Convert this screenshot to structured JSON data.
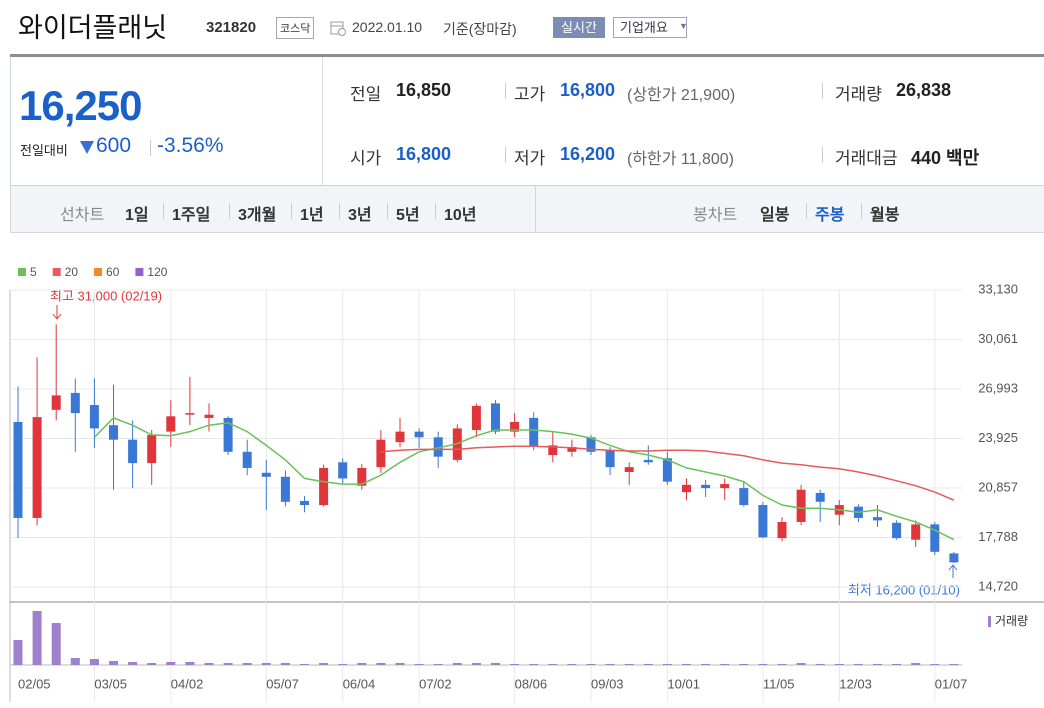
{
  "header": {
    "title": "와이더플래닛",
    "code": "321820",
    "market": "코스닥",
    "date": "2022.01.10",
    "basis": "기준(장마감)",
    "realtime": "실시간",
    "company": "기업개요"
  },
  "quote": {
    "price": "16,250",
    "change_label": "전일대비",
    "change": "600",
    "change_pct": "-3.56%",
    "items": [
      {
        "label": "전일",
        "value": "16,850"
      },
      {
        "label": "고가",
        "value": "16,800",
        "note": "(상한가 21,900)"
      },
      {
        "label": "거래량",
        "value": "26,838"
      },
      {
        "label": "시가",
        "value": "16,800"
      },
      {
        "label": "저가",
        "value": "16,200",
        "note": "(하한가 11,800)"
      },
      {
        "label": "거래대금",
        "value": "440 백만"
      }
    ]
  },
  "tabs": {
    "line_label": "선차트",
    "line_items": [
      "1일",
      "1주일",
      "3개월",
      "1년",
      "3년",
      "5년",
      "10년"
    ],
    "candle_label": "봉차트",
    "candle_items": [
      "일봉",
      "주봉",
      "월봉"
    ],
    "active": "주봉"
  },
  "chart_data": {
    "type": "candlestick",
    "categories": [
      "02/05",
      null,
      null,
      null,
      "03/05",
      null,
      null,
      null,
      "04/02",
      null,
      null,
      null,
      null,
      "05/07",
      null,
      null,
      null,
      "06/04",
      null,
      null,
      null,
      "07/02",
      null,
      null,
      null,
      null,
      "08/06",
      null,
      null,
      null,
      "09/03",
      null,
      null,
      null,
      "10/01",
      null,
      null,
      null,
      null,
      "11/05",
      null,
      null,
      null,
      "12/03",
      null,
      null,
      null,
      null,
      "01/07",
      null
    ],
    "open": [
      24950,
      19000,
      25700,
      26750,
      26000,
      24750,
      23850,
      22400,
      24350,
      25400,
      25200,
      25200,
      23100,
      21800,
      21550,
      20050,
      19800,
      22450,
      21000,
      22150,
      23700,
      24350,
      24000,
      22600,
      24450,
      26100,
      24350,
      25200,
      22900,
      23100,
      24000,
      23200,
      21850,
      22600,
      22700,
      20600,
      21050,
      20850,
      20850,
      19800,
      17750,
      18750,
      20550,
      19200,
      19700,
      19050,
      18700,
      17650,
      18600,
      16800
    ],
    "high": [
      27150,
      28950,
      31000,
      27650,
      27650,
      27250,
      25050,
      24450,
      26300,
      27750,
      26100,
      25300,
      23850,
      22600,
      21950,
      20350,
      22300,
      22700,
      22350,
      24450,
      25200,
      24550,
      24350,
      24800,
      26100,
      26300,
      25500,
      25550,
      24350,
      23850,
      24150,
      23400,
      22450,
      23500,
      23100,
      21450,
      21350,
      21450,
      21250,
      20000,
      19050,
      21050,
      20750,
      20100,
      19850,
      19800,
      18850,
      18850,
      18750,
      16900
    ],
    "low": [
      17750,
      18550,
      25050,
      23100,
      23350,
      20750,
      20850,
      21050,
      23400,
      24750,
      24350,
      22900,
      21650,
      19500,
      19700,
      19350,
      19700,
      21150,
      20750,
      21800,
      23400,
      23350,
      22100,
      22450,
      24000,
      24200,
      24000,
      23200,
      22450,
      22800,
      22900,
      21650,
      21050,
      22300,
      21050,
      20100,
      20300,
      20100,
      19700,
      17750,
      17550,
      18550,
      18750,
      18550,
      18750,
      18450,
      17650,
      17200,
      16700,
      16200
    ],
    "close": [
      19000,
      25250,
      26600,
      25500,
      24550,
      23850,
      22400,
      24150,
      25300,
      25500,
      25400,
      23100,
      22100,
      21550,
      20000,
      19800,
      22100,
      21450,
      22100,
      23850,
      24350,
      24000,
      22800,
      24550,
      25950,
      24350,
      24950,
      23450,
      23500,
      23400,
      23100,
      22150,
      22150,
      22450,
      21250,
      21050,
      20850,
      21100,
      19800,
      17800,
      18750,
      20750,
      20000,
      19800,
      19000,
      18850,
      17750,
      18600,
      16900,
      16250
    ],
    "up_color": "#e0363b",
    "down_color": "#3a78d6",
    "series": [
      {
        "name": "5",
        "color": "#6cc05c",
        "values": [
          null,
          null,
          null,
          null,
          24000,
          25200,
          24750,
          24150,
          24100,
          24350,
          24750,
          24900,
          24350,
          23500,
          22600,
          21450,
          21250,
          21100,
          21100,
          21650,
          22450,
          23100,
          23350,
          23600,
          24100,
          24450,
          24450,
          24450,
          24350,
          24200,
          23950,
          23500,
          23100,
          22900,
          22600,
          22100,
          21850,
          21600,
          21250,
          20400,
          19800,
          19600,
          19600,
          19500,
          19350,
          19500,
          19100,
          18750,
          18250,
          17650
        ]
      },
      {
        "name": "20",
        "color": "#e65a5a",
        "values": [
          null,
          null,
          null,
          null,
          null,
          null,
          null,
          null,
          null,
          null,
          null,
          null,
          null,
          null,
          null,
          null,
          null,
          null,
          null,
          23100,
          23200,
          23250,
          23250,
          23250,
          23350,
          23400,
          23450,
          23450,
          23400,
          23350,
          23250,
          23200,
          23150,
          23150,
          23200,
          23200,
          23150,
          23000,
          22850,
          22600,
          22400,
          22300,
          22150,
          22050,
          21850,
          21600,
          21300,
          21000,
          20600,
          20100
        ]
      },
      {
        "name": "60",
        "color": "#f08a24",
        "values": [
          null,
          null,
          null,
          null,
          null,
          null,
          null,
          null,
          null,
          null,
          null,
          null,
          null,
          null,
          null,
          null,
          null,
          null,
          null,
          null,
          null,
          null,
          null,
          null,
          null,
          null,
          null,
          null,
          null,
          null,
          null,
          null,
          null,
          null,
          null,
          null,
          null,
          null,
          null,
          null,
          null,
          null,
          null,
          null,
          null,
          null,
          null,
          null,
          null,
          null
        ]
      },
      {
        "name": "120",
        "color": "#9563c9",
        "values": [
          null,
          null,
          null,
          null,
          null,
          null,
          null,
          null,
          null,
          null,
          null,
          null,
          null,
          null,
          null,
          null,
          null,
          null,
          null,
          null,
          null,
          null,
          null,
          null,
          null,
          null,
          null,
          null,
          null,
          null,
          null,
          null,
          null,
          null,
          null,
          null,
          null,
          null,
          null,
          null,
          null,
          null,
          null,
          null,
          null,
          null,
          null,
          null,
          null,
          null
        ]
      }
    ],
    "volume_name": "거래량",
    "volume_color": "#9e80cc",
    "volume": [
      500000,
      1080000,
      840000,
      140000,
      120000,
      80000,
      60000,
      40000,
      60000,
      60000,
      40000,
      40000,
      40000,
      40000,
      40000,
      20000,
      40000,
      20000,
      40000,
      40000,
      40000,
      20000,
      20000,
      40000,
      40000,
      40000,
      20000,
      20000,
      20000,
      20000,
      20000,
      20000,
      20000,
      20000,
      20000,
      20000,
      20000,
      20000,
      20000,
      20000,
      20000,
      40000,
      20000,
      20000,
      20000,
      20000,
      20000,
      40000,
      20000,
      20000
    ],
    "ylim": [
      14720,
      33130
    ],
    "yticks": [
      {
        "value": 33130,
        "label": "33,130"
      },
      {
        "value": 30061,
        "label": "30,061"
      },
      {
        "value": 26993,
        "label": "26,993"
      },
      {
        "value": 23925,
        "label": "23,925"
      },
      {
        "value": 20857,
        "label": "20,857"
      },
      {
        "value": 17788,
        "label": "17,788"
      },
      {
        "value": 14720,
        "label": "14,720"
      }
    ],
    "grid": true,
    "annotations": [
      {
        "text": "최고 31,000 (02/19)"
      },
      {
        "text": "최저 16,200 (01/10)"
      }
    ]
  }
}
